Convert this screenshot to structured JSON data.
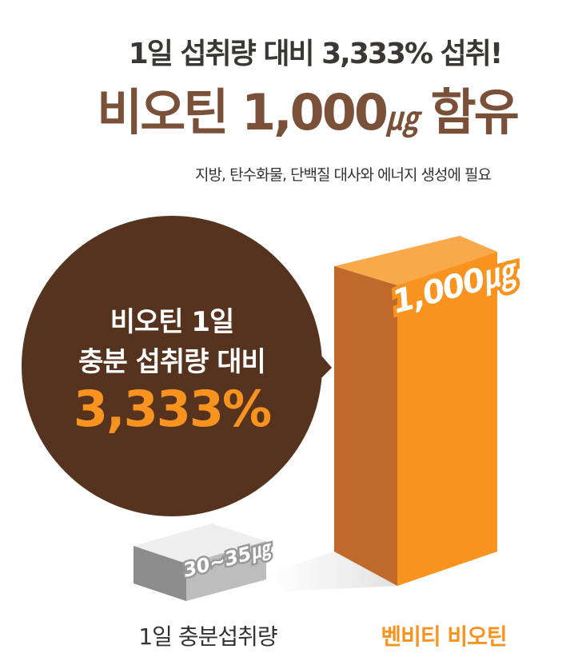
{
  "header": {
    "line1": "1일 섭취량 대비 3,333% 섭취!",
    "line2_main": "비오틴 1,000",
    "line2_unit": "㎍",
    "line2_end": " 함유",
    "subtitle": "지방, 탄수화물, 단백질 대사와 에너지 생성에 필요"
  },
  "bubble": {
    "line1": "비오틴 1일",
    "line2": "충분 섭취량 대비",
    "percent": "3,333%"
  },
  "bars": [
    {
      "label": "1일 충분섭취량",
      "value_label": "30~35㎍",
      "color": "#bdbdbd"
    },
    {
      "label": "벤비티 비오틴",
      "value_label": "1,000㎍",
      "color": "#f7931e"
    }
  ],
  "colors": {
    "brown": "#55331f",
    "orange": "#f7931e",
    "title_brown": "#7a5038"
  }
}
